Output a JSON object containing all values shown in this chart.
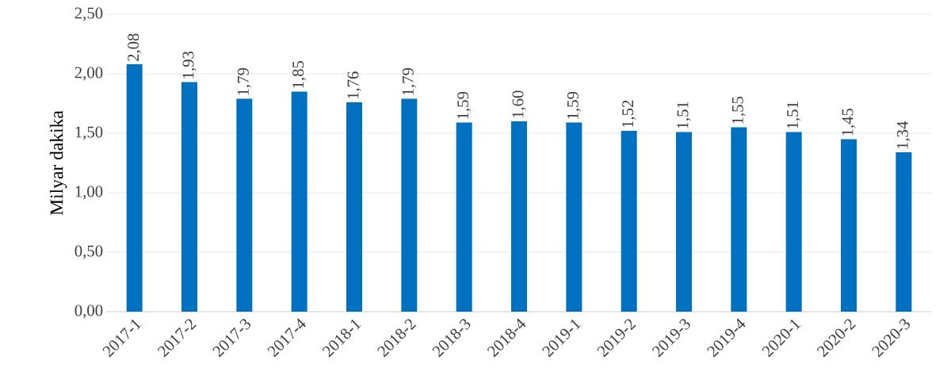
{
  "chart_data": {
    "type": "bar",
    "ylabel": "Milyar dakika",
    "categories": [
      "2017-1",
      "2017-2",
      "2017-3",
      "2017-4",
      "2018-1",
      "2018-2",
      "2018-3",
      "2018-4",
      "2019-1",
      "2019-2",
      "2019-3",
      "2019-4",
      "2020-1",
      "2020-2",
      "2020-3"
    ],
    "values": [
      2.08,
      1.93,
      1.79,
      1.85,
      1.76,
      1.79,
      1.59,
      1.6,
      1.59,
      1.52,
      1.51,
      1.55,
      1.51,
      1.45,
      1.34
    ],
    "value_labels": [
      "2,08",
      "1,93",
      "1,79",
      "1,85",
      "1,76",
      "1,79",
      "1,59",
      "1,60",
      "1,59",
      "1,52",
      "1,51",
      "1,55",
      "1,51",
      "1,45",
      "1,34"
    ],
    "color": "#0070c0",
    "ylim": [
      0,
      2.5
    ],
    "yticks": [
      {
        "value": 0,
        "label": "0,00"
      },
      {
        "value": 0.5,
        "label": "0,50"
      },
      {
        "value": 1,
        "label": "1,00"
      },
      {
        "value": 1.5,
        "label": "1,50"
      },
      {
        "value": 2,
        "label": "2,00"
      },
      {
        "value": 2.5,
        "label": "2,50"
      }
    ],
    "grid": "y"
  }
}
